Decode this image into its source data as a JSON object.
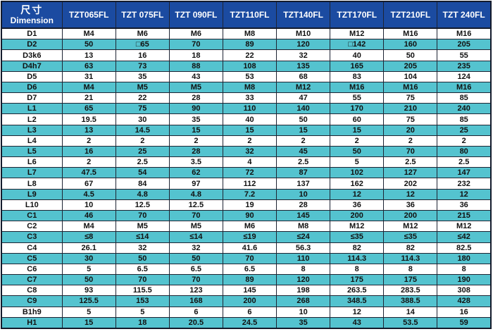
{
  "table": {
    "corner_header": {
      "zh": "尺寸",
      "en": "Dimension"
    },
    "columns": [
      "TZT065FL",
      "TZT 075FL",
      "TZT 090FL",
      "TZT110FL",
      "TZT140FL",
      "TZT170FL",
      "TZT210FL",
      "TZT 240FL"
    ],
    "rows": [
      {
        "label": "D1",
        "values": [
          "M4",
          "M6",
          "M6",
          "M8",
          "M10",
          "M12",
          "M16",
          "M16"
        ]
      },
      {
        "label": "D2",
        "values": [
          "50",
          "□65",
          "70",
          "89",
          "120",
          "□142",
          "160",
          "205"
        ]
      },
      {
        "label": "D3k6",
        "values": [
          "13",
          "16",
          "18",
          "22",
          "32",
          "40",
          "50",
          "55"
        ]
      },
      {
        "label": "D4h7",
        "values": [
          "63",
          "73",
          "88",
          "108",
          "135",
          "165",
          "205",
          "235"
        ]
      },
      {
        "label": "D5",
        "values": [
          "31",
          "35",
          "43",
          "53",
          "68",
          "83",
          "104",
          "124"
        ]
      },
      {
        "label": "D6",
        "values": [
          "M4",
          "M5",
          "M5",
          "M8",
          "M12",
          "M16",
          "M16",
          "M16"
        ]
      },
      {
        "label": "D7",
        "values": [
          "21",
          "22",
          "28",
          "33",
          "47",
          "55",
          "75",
          "85"
        ]
      },
      {
        "label": "L1",
        "values": [
          "65",
          "75",
          "90",
          "110",
          "140",
          "170",
          "210",
          "240"
        ]
      },
      {
        "label": "L2",
        "values": [
          "19.5",
          "30",
          "35",
          "40",
          "50",
          "60",
          "75",
          "85"
        ]
      },
      {
        "label": "L3",
        "values": [
          "13",
          "14.5",
          "15",
          "15",
          "15",
          "15",
          "20",
          "25"
        ]
      },
      {
        "label": "L4",
        "values": [
          "2",
          "2",
          "2",
          "2",
          "2",
          "2",
          "2",
          "2"
        ]
      },
      {
        "label": "L5",
        "values": [
          "16",
          "25",
          "28",
          "32",
          "45",
          "50",
          "70",
          "80"
        ]
      },
      {
        "label": "L6",
        "values": [
          "2",
          "2.5",
          "3.5",
          "4",
          "2.5",
          "5",
          "2.5",
          "2.5"
        ]
      },
      {
        "label": "L7",
        "values": [
          "47.5",
          "54",
          "62",
          "72",
          "87",
          "102",
          "127",
          "147"
        ]
      },
      {
        "label": "L8",
        "values": [
          "67",
          "84",
          "97",
          "112",
          "137",
          "162",
          "202",
          "232"
        ]
      },
      {
        "label": "L9",
        "values": [
          "4.5",
          "4.8",
          "4.8",
          "7.2",
          "10",
          "12",
          "12",
          "12"
        ]
      },
      {
        "label": "L10",
        "values": [
          "10",
          "12.5",
          "12.5",
          "19",
          "28",
          "36",
          "36",
          "36"
        ]
      },
      {
        "label": "C1",
        "values": [
          "46",
          "70",
          "70",
          "90",
          "145",
          "200",
          "200",
          "215"
        ]
      },
      {
        "label": "C2",
        "values": [
          "M4",
          "M5",
          "M5",
          "M6",
          "M8",
          "M12",
          "M12",
          "M12"
        ]
      },
      {
        "label": "C3",
        "values": [
          "≤8",
          "≤14",
          "≤14",
          "≤19",
          "≤24",
          "≤35",
          "≤35",
          "≤42"
        ]
      },
      {
        "label": "C4",
        "values": [
          "26.1",
          "32",
          "32",
          "41.6",
          "56.3",
          "82",
          "82",
          "82.5"
        ]
      },
      {
        "label": "C5",
        "values": [
          "30",
          "50",
          "50",
          "70",
          "110",
          "114.3",
          "114.3",
          "180"
        ]
      },
      {
        "label": "C6",
        "values": [
          "5",
          "6.5",
          "6.5",
          "6.5",
          "8",
          "8",
          "8",
          "8"
        ]
      },
      {
        "label": "C7",
        "values": [
          "50",
          "70",
          "70",
          "89",
          "120",
          "175",
          "175",
          "190"
        ]
      },
      {
        "label": "C8",
        "values": [
          "93",
          "115.5",
          "123",
          "145",
          "198",
          "263.5",
          "283.5",
          "308"
        ]
      },
      {
        "label": "C9",
        "values": [
          "125.5",
          "153",
          "168",
          "200",
          "268",
          "348.5",
          "388.5",
          "428"
        ]
      },
      {
        "label": "B1h9",
        "values": [
          "5",
          "5",
          "6",
          "6",
          "10",
          "12",
          "14",
          "16"
        ]
      },
      {
        "label": "H1",
        "values": [
          "15",
          "18",
          "20.5",
          "24.5",
          "35",
          "43",
          "53.5",
          "59"
        ]
      }
    ],
    "colors": {
      "header_bg": "#1b4ba1",
      "header_text": "#ffffff",
      "row_bg": "#ffffff",
      "row_alt_bg": "#54c3cf",
      "cell_text": "#111111",
      "border": "#1e2433"
    }
  }
}
